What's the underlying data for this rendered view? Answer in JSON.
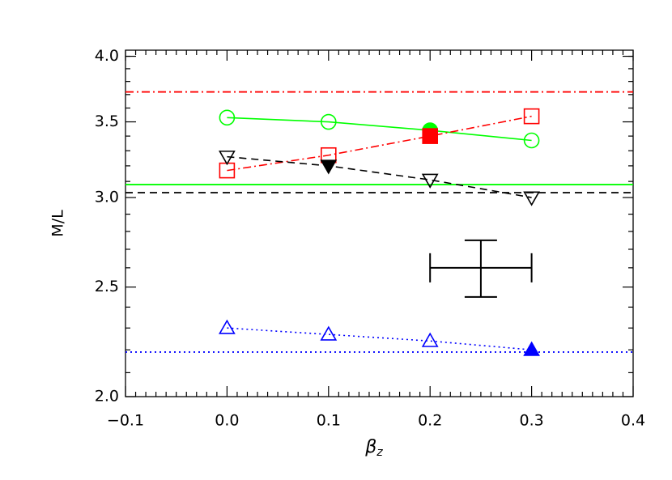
{
  "chart_data": {
    "type": "line",
    "x_label": {
      "symbol": "β",
      "subscript": "z"
    },
    "y_label": "M/L",
    "x": [
      0,
      0.1,
      0.2,
      0.3
    ],
    "series": [
      {
        "color": "#00ff00",
        "marker": "circle",
        "line_style": "solid",
        "values": [
          3.53,
          3.5,
          3.44,
          3.37
        ],
        "filled_index": 2,
        "reference": 3.08
      },
      {
        "color": "#ff0000",
        "marker": "square",
        "line_style": "dashdot",
        "values": [
          3.17,
          3.27,
          3.4,
          3.54
        ],
        "filled_index": 2,
        "reference": 3.72
      },
      {
        "color": "#000000",
        "marker": "triangle-down",
        "line_style": "dashed",
        "values": [
          3.26,
          3.2,
          3.11,
          3.0
        ],
        "filled_index": 1,
        "reference": 3.03
      },
      {
        "color": "#0000ff",
        "marker": "triangle-up",
        "line_style": "dotted",
        "values": [
          2.3,
          2.27,
          2.24,
          2.2
        ],
        "filled_index": 3,
        "reference": 2.19
      }
    ],
    "error_bar": {
      "x": 0.25,
      "y": 2.6,
      "xerr": 0.05,
      "yerr": 0.15
    },
    "xlim": [
      -0.1,
      0.4
    ],
    "ylim": [
      2.0,
      4.05
    ],
    "log_y": true,
    "xticks": [
      {
        "value": -0.1,
        "label": "−0.1"
      },
      {
        "value": 0,
        "label": "0.0"
      },
      0.1,
      0.2,
      0.3,
      0.4
    ],
    "yticks": [
      {
        "value": 2,
        "label": "2.0"
      },
      2.5,
      {
        "value": 3,
        "label": "3.0"
      },
      3.5,
      {
        "value": 4,
        "label": "4.0"
      }
    ],
    "xminorticks": [
      -0.09,
      -0.08,
      -0.07,
      -0.06,
      -0.05,
      -0.04,
      -0.03,
      -0.02,
      -0.01,
      0.01,
      0.02,
      0.03,
      0.04,
      0.05,
      0.06,
      0.07,
      0.08,
      0.09,
      0.11,
      0.12,
      0.13,
      0.14,
      0.15,
      0.16,
      0.17,
      0.18,
      0.19,
      0.21,
      0.22,
      0.23,
      0.24,
      0.25,
      0.26,
      0.27,
      0.28,
      0.29,
      0.31,
      0.32,
      0.33,
      0.34,
      0.35,
      0.36,
      0.37,
      0.38,
      0.39
    ],
    "yminorticks": [
      2.1,
      2.2,
      2.3,
      2.4,
      2.6,
      2.7,
      2.8,
      2.9,
      3.1,
      3.2,
      3.3,
      3.4,
      3.6,
      3.7,
      3.8,
      3.9,
      4.0
    ]
  }
}
